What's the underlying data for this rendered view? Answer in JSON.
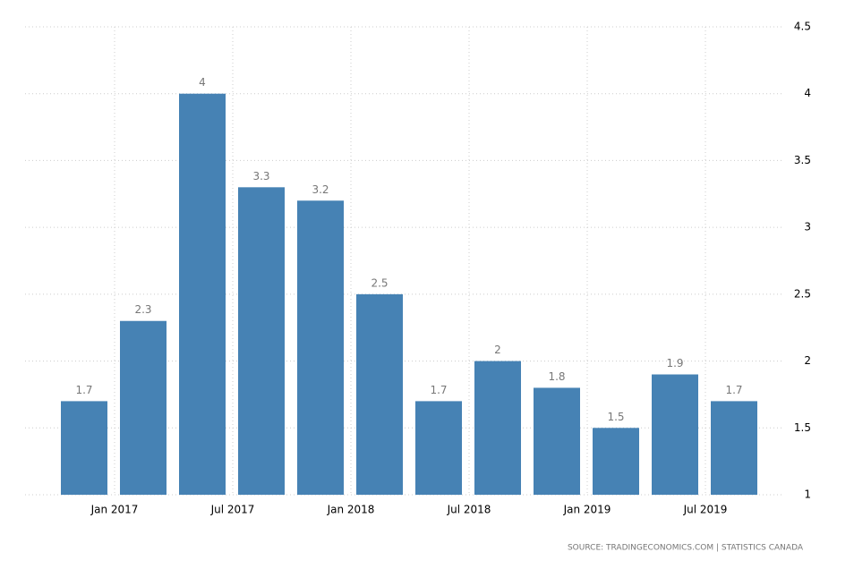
{
  "chart_data": {
    "type": "bar",
    "values": [
      1.7,
      2.3,
      4,
      3.3,
      3.2,
      2.5,
      1.7,
      2,
      1.8,
      1.5,
      1.9,
      1.7
    ],
    "xtick_labels": [
      "Jan 2017",
      "Jul 2017",
      "Jan 2018",
      "Jul 2018",
      "Jan 2019",
      "Jul 2019"
    ],
    "color": "#4682b4",
    "ylim": [
      1,
      4.5
    ],
    "yticks": [
      1,
      1.5,
      2,
      2.5,
      3,
      3.5,
      4,
      4.5
    ],
    "grid": true,
    "source": "SOURCE:  TRADINGECONOMICS.COM  |  STATISTICS CANADA"
  }
}
